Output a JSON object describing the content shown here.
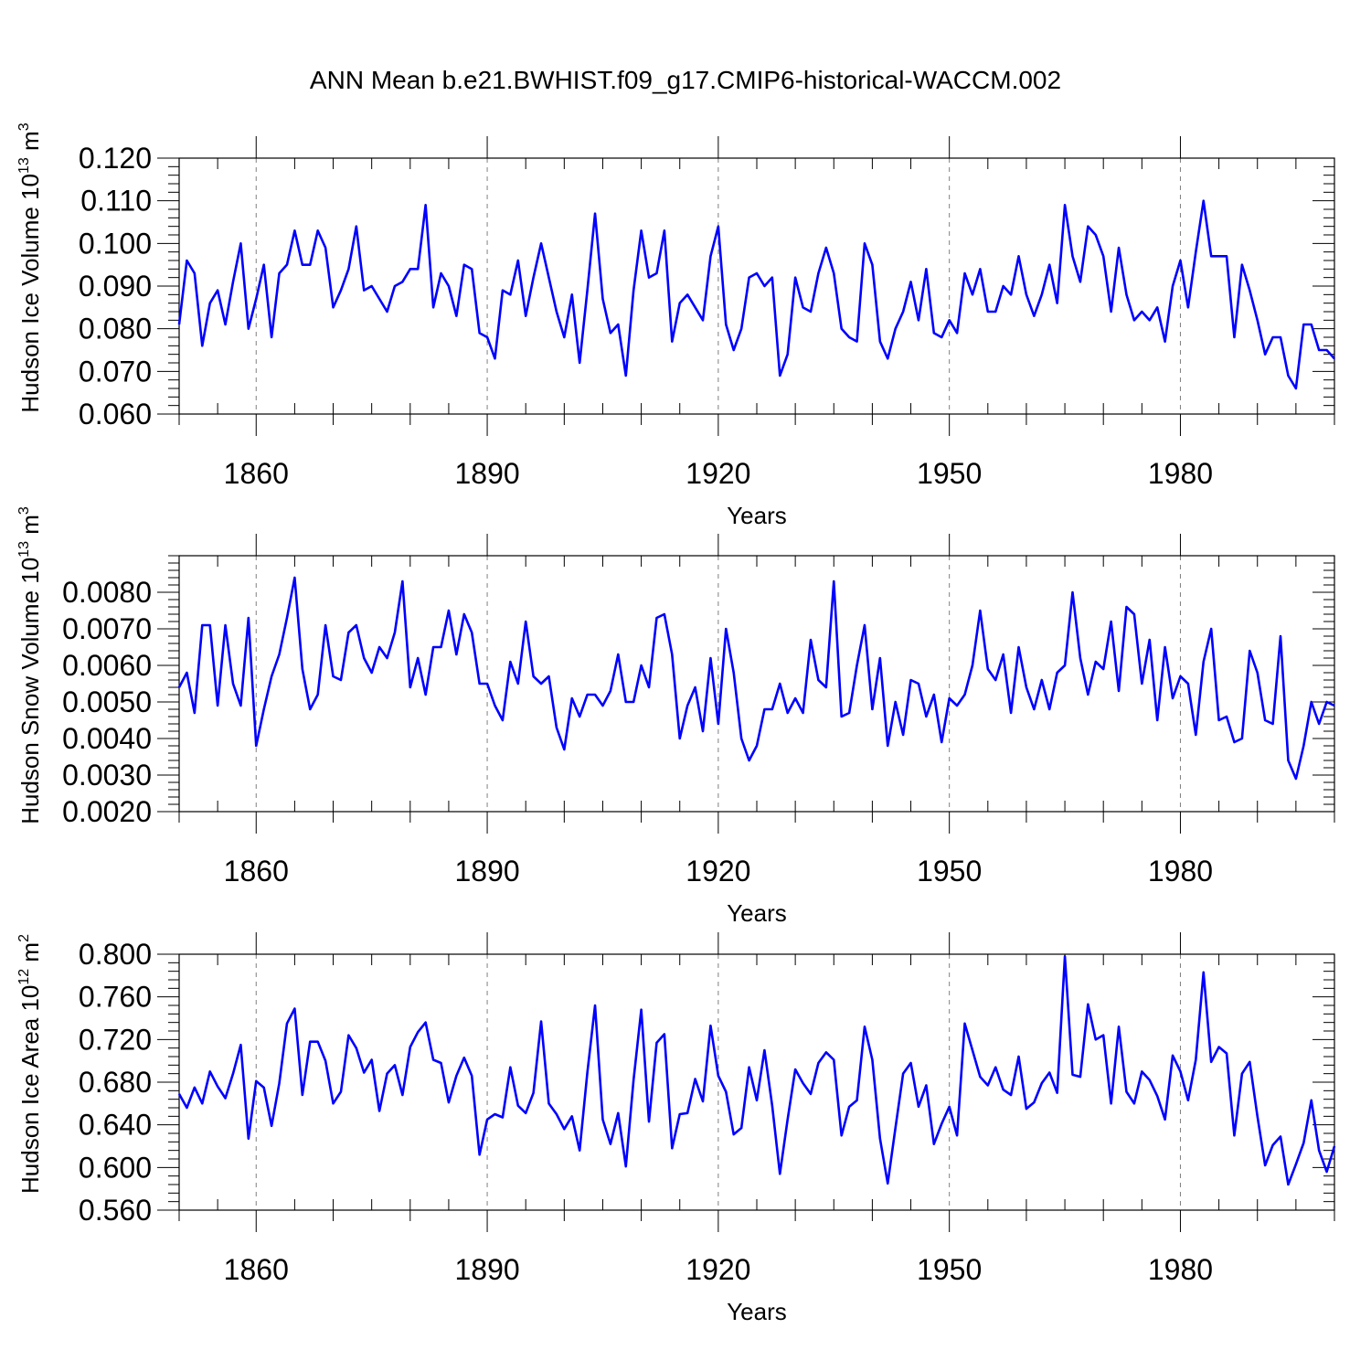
{
  "title": "ANN Mean b.e21.BWHIST.f09_g17.CMIP6-historical-WACCM.002",
  "colors": {
    "series": "#0000ff",
    "axis": "#000000",
    "grid": "#808080"
  },
  "chart_data": [
    {
      "type": "line",
      "id": "ice-volume",
      "ylabel": "Hudson Ice Volume 10",
      "ylabel_exp": "13",
      "ylabel_unit": " m",
      "ylabel_unit_exp": "3",
      "xlabel": "Years",
      "xlim": [
        1850,
        2000
      ],
      "ylim": [
        0.06,
        0.12
      ],
      "x_ticks": [
        1860,
        1890,
        1920,
        1950,
        1980
      ],
      "x_tick_labels": [
        "1860",
        "1890",
        "1920",
        "1950",
        "1980"
      ],
      "y_ticks": [
        0.06,
        0.07,
        0.08,
        0.09,
        0.1,
        0.11,
        0.12
      ],
      "y_tick_labels": [
        "0.060",
        "0.070",
        "0.080",
        "0.090",
        "0.100",
        "0.110",
        "0.120"
      ],
      "x_start": 1850,
      "values": [
        0.081,
        0.096,
        0.093,
        0.076,
        0.086,
        0.089,
        0.081,
        0.091,
        0.1,
        0.08,
        0.087,
        0.095,
        0.078,
        0.093,
        0.095,
        0.103,
        0.095,
        0.095,
        0.103,
        0.099,
        0.085,
        0.089,
        0.094,
        0.104,
        0.089,
        0.09,
        0.087,
        0.084,
        0.09,
        0.091,
        0.094,
        0.094,
        0.109,
        0.085,
        0.093,
        0.09,
        0.083,
        0.095,
        0.094,
        0.079,
        0.078,
        0.073,
        0.089,
        0.088,
        0.096,
        0.083,
        0.092,
        0.1,
        0.092,
        0.084,
        0.078,
        0.088,
        0.072,
        0.089,
        0.107,
        0.087,
        0.079,
        0.081,
        0.069,
        0.089,
        0.103,
        0.092,
        0.093,
        0.103,
        0.077,
        0.086,
        0.088,
        0.085,
        0.082,
        0.097,
        0.104,
        0.081,
        0.075,
        0.08,
        0.092,
        0.093,
        0.09,
        0.092,
        0.069,
        0.074,
        0.092,
        0.085,
        0.084,
        0.093,
        0.099,
        0.093,
        0.08,
        0.078,
        0.077,
        0.1,
        0.095,
        0.077,
        0.073,
        0.08,
        0.084,
        0.091,
        0.082,
        0.094,
        0.079,
        0.078,
        0.082,
        0.079,
        0.093,
        0.088,
        0.094,
        0.084,
        0.084,
        0.09,
        0.088,
        0.097,
        0.088,
        0.083,
        0.088,
        0.095,
        0.086,
        0.109,
        0.097,
        0.091,
        0.104,
        0.102,
        0.097,
        0.084,
        0.099,
        0.088,
        0.082,
        0.084,
        0.082,
        0.085,
        0.077,
        0.09,
        0.096,
        0.085,
        0.098,
        0.11,
        0.097,
        0.097,
        0.097,
        0.078,
        0.095,
        0.089,
        0.082,
        0.074,
        0.078,
        0.078,
        0.069,
        0.066,
        0.081,
        0.081,
        0.075,
        0.075,
        0.073
      ]
    },
    {
      "type": "line",
      "id": "snow-volume",
      "ylabel": "Hudson Snow Volume 10",
      "ylabel_exp": "13",
      "ylabel_unit": " m",
      "ylabel_unit_exp": "3",
      "xlabel": "Years",
      "xlim": [
        1850,
        2000
      ],
      "ylim": [
        0.002,
        0.009
      ],
      "x_ticks": [
        1860,
        1890,
        1920,
        1950,
        1980
      ],
      "x_tick_labels": [
        "1860",
        "1890",
        "1920",
        "1950",
        "1980"
      ],
      "y_ticks": [
        0.002,
        0.003,
        0.004,
        0.005,
        0.006,
        0.007,
        0.008
      ],
      "y_tick_labels": [
        "0.0020",
        "0.0030",
        "0.0040",
        "0.0050",
        "0.0060",
        "0.0070",
        "0.0080"
      ],
      "x_start": 1850,
      "values": [
        0.0054,
        0.0058,
        0.0047,
        0.0071,
        0.0071,
        0.0049,
        0.0071,
        0.0055,
        0.0049,
        0.0073,
        0.0038,
        0.0048,
        0.0057,
        0.0063,
        0.0073,
        0.0084,
        0.0059,
        0.0048,
        0.0052,
        0.0071,
        0.0057,
        0.0056,
        0.0069,
        0.0071,
        0.0062,
        0.0058,
        0.0065,
        0.0062,
        0.0069,
        0.0083,
        0.0054,
        0.0062,
        0.0052,
        0.0065,
        0.0065,
        0.0075,
        0.0063,
        0.0074,
        0.0069,
        0.0055,
        0.0055,
        0.0049,
        0.0045,
        0.0061,
        0.0055,
        0.0072,
        0.0057,
        0.0055,
        0.0057,
        0.0043,
        0.0037,
        0.0051,
        0.0046,
        0.0052,
        0.0052,
        0.0049,
        0.0053,
        0.0063,
        0.005,
        0.005,
        0.006,
        0.0054,
        0.0073,
        0.0074,
        0.0063,
        0.004,
        0.0049,
        0.0054,
        0.0042,
        0.0062,
        0.0044,
        0.007,
        0.0058,
        0.004,
        0.0034,
        0.0038,
        0.0048,
        0.0048,
        0.0055,
        0.0047,
        0.0051,
        0.0047,
        0.0067,
        0.0056,
        0.0054,
        0.0083,
        0.0046,
        0.0047,
        0.006,
        0.0071,
        0.0048,
        0.0062,
        0.0038,
        0.005,
        0.0041,
        0.0056,
        0.0055,
        0.0046,
        0.0052,
        0.0039,
        0.0051,
        0.0049,
        0.0052,
        0.006,
        0.0075,
        0.0059,
        0.0056,
        0.0063,
        0.0047,
        0.0065,
        0.0054,
        0.0048,
        0.0056,
        0.0048,
        0.0058,
        0.006,
        0.008,
        0.0062,
        0.0052,
        0.0061,
        0.0059,
        0.0072,
        0.0053,
        0.0076,
        0.0074,
        0.0055,
        0.0067,
        0.0045,
        0.0065,
        0.0051,
        0.0057,
        0.0055,
        0.0041,
        0.0061,
        0.007,
        0.0045,
        0.0046,
        0.0039,
        0.004,
        0.0064,
        0.0058,
        0.0045,
        0.0044,
        0.0068,
        0.0034,
        0.0029,
        0.0038,
        0.005,
        0.0044,
        0.005,
        0.0049
      ]
    },
    {
      "type": "line",
      "id": "ice-area",
      "ylabel": "Hudson Ice Area 10",
      "ylabel_exp": "12",
      "ylabel_unit": " m",
      "ylabel_unit_exp": "2",
      "xlabel": "Years",
      "xlim": [
        1850,
        2000
      ],
      "ylim": [
        0.56,
        0.8
      ],
      "x_ticks": [
        1860,
        1890,
        1920,
        1950,
        1980
      ],
      "x_tick_labels": [
        "1860",
        "1890",
        "1920",
        "1950",
        "1980"
      ],
      "y_ticks": [
        0.56,
        0.6,
        0.64,
        0.68,
        0.72,
        0.76,
        0.8
      ],
      "y_tick_labels": [
        "0.560",
        "0.600",
        "0.640",
        "0.680",
        "0.720",
        "0.760",
        "0.800"
      ],
      "x_start": 1850,
      "values": [
        0.669,
        0.656,
        0.675,
        0.66,
        0.69,
        0.676,
        0.665,
        0.688,
        0.715,
        0.627,
        0.681,
        0.675,
        0.639,
        0.679,
        0.735,
        0.749,
        0.668,
        0.718,
        0.718,
        0.7,
        0.66,
        0.671,
        0.724,
        0.712,
        0.689,
        0.701,
        0.653,
        0.688,
        0.696,
        0.668,
        0.713,
        0.727,
        0.736,
        0.701,
        0.698,
        0.661,
        0.686,
        0.703,
        0.686,
        0.612,
        0.645,
        0.65,
        0.647,
        0.694,
        0.658,
        0.651,
        0.67,
        0.737,
        0.66,
        0.65,
        0.636,
        0.648,
        0.616,
        0.689,
        0.752,
        0.645,
        0.622,
        0.651,
        0.601,
        0.682,
        0.748,
        0.643,
        0.717,
        0.725,
        0.618,
        0.65,
        0.651,
        0.683,
        0.662,
        0.733,
        0.686,
        0.671,
        0.631,
        0.637,
        0.694,
        0.663,
        0.71,
        0.658,
        0.594,
        0.645,
        0.692,
        0.679,
        0.669,
        0.698,
        0.708,
        0.701,
        0.63,
        0.657,
        0.663,
        0.732,
        0.701,
        0.627,
        0.585,
        0.637,
        0.688,
        0.698,
        0.657,
        0.677,
        0.622,
        0.641,
        0.657,
        0.63,
        0.735,
        0.71,
        0.685,
        0.677,
        0.694,
        0.673,
        0.668,
        0.704,
        0.655,
        0.661,
        0.679,
        0.689,
        0.67,
        0.798,
        0.687,
        0.685,
        0.753,
        0.72,
        0.724,
        0.66,
        0.732,
        0.671,
        0.66,
        0.69,
        0.682,
        0.667,
        0.645,
        0.705,
        0.69,
        0.663,
        0.701,
        0.783,
        0.699,
        0.713,
        0.707,
        0.63,
        0.688,
        0.699,
        0.648,
        0.602,
        0.621,
        0.629,
        0.584,
        0.603,
        0.623,
        0.663,
        0.616,
        0.596,
        0.62
      ]
    }
  ]
}
